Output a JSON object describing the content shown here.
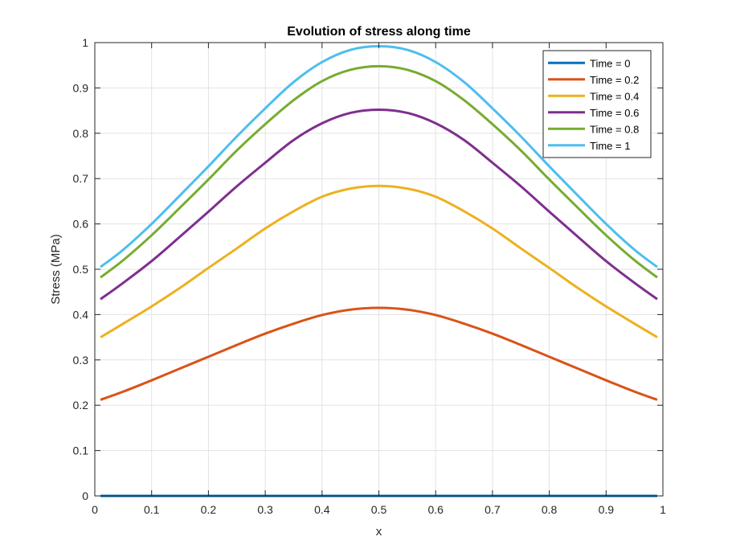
{
  "chart_data": {
    "type": "line",
    "title": "Evolution of stress along time",
    "xlabel": "x",
    "ylabel": "Stress (MPa)",
    "xlim": [
      0,
      1
    ],
    "ylim": [
      0,
      1
    ],
    "xticks": [
      "0",
      "0.1",
      "0.2",
      "0.3",
      "0.4",
      "0.5",
      "0.6",
      "0.7",
      "0.8",
      "0.9",
      "1"
    ],
    "yticks": [
      "0",
      "0.1",
      "0.2",
      "0.3",
      "0.4",
      "0.5",
      "0.6",
      "0.7",
      "0.8",
      "0.9",
      "1"
    ],
    "grid": true,
    "legend_position": "top-right",
    "x": [
      0.01,
      0.05,
      0.1,
      0.15,
      0.2,
      0.25,
      0.3,
      0.35,
      0.4,
      0.45,
      0.5,
      0.55,
      0.6,
      0.65,
      0.7,
      0.75,
      0.8,
      0.85,
      0.9,
      0.95,
      0.99
    ],
    "series": [
      {
        "name": "Time = 0",
        "color": "#0072BD",
        "values": [
          0,
          0,
          0,
          0,
          0,
          0,
          0,
          0,
          0,
          0,
          0,
          0,
          0,
          0,
          0,
          0,
          0,
          0,
          0,
          0,
          0
        ]
      },
      {
        "name": "Time = 0.2",
        "color": "#D95319",
        "values": [
          0.212,
          0.23,
          0.255,
          0.281,
          0.307,
          0.333,
          0.358,
          0.38,
          0.399,
          0.411,
          0.415,
          0.411,
          0.399,
          0.38,
          0.358,
          0.333,
          0.307,
          0.281,
          0.255,
          0.23,
          0.212
        ]
      },
      {
        "name": "Time = 0.4",
        "color": "#EDB120",
        "values": [
          0.35,
          0.38,
          0.418,
          0.459,
          0.503,
          0.546,
          0.59,
          0.628,
          0.66,
          0.678,
          0.684,
          0.678,
          0.66,
          0.628,
          0.59,
          0.546,
          0.503,
          0.459,
          0.418,
          0.38,
          0.35
        ]
      },
      {
        "name": "Time = 0.6",
        "color": "#7E2F8E",
        "values": [
          0.434,
          0.47,
          0.518,
          0.572,
          0.627,
          0.683,
          0.735,
          0.785,
          0.822,
          0.845,
          0.852,
          0.845,
          0.822,
          0.785,
          0.735,
          0.683,
          0.627,
          0.572,
          0.518,
          0.47,
          0.434
        ]
      },
      {
        "name": "Time = 0.8",
        "color": "#77AC30",
        "values": [
          0.482,
          0.52,
          0.575,
          0.636,
          0.698,
          0.762,
          0.82,
          0.873,
          0.915,
          0.94,
          0.948,
          0.94,
          0.915,
          0.873,
          0.82,
          0.762,
          0.698,
          0.636,
          0.575,
          0.52,
          0.482
        ]
      },
      {
        "name": "Time = 1",
        "color": "#4DBEEE",
        "values": [
          0.505,
          0.543,
          0.6,
          0.663,
          0.727,
          0.793,
          0.855,
          0.913,
          0.957,
          0.984,
          0.992,
          0.984,
          0.957,
          0.913,
          0.855,
          0.793,
          0.727,
          0.663,
          0.6,
          0.543,
          0.505
        ]
      }
    ]
  }
}
